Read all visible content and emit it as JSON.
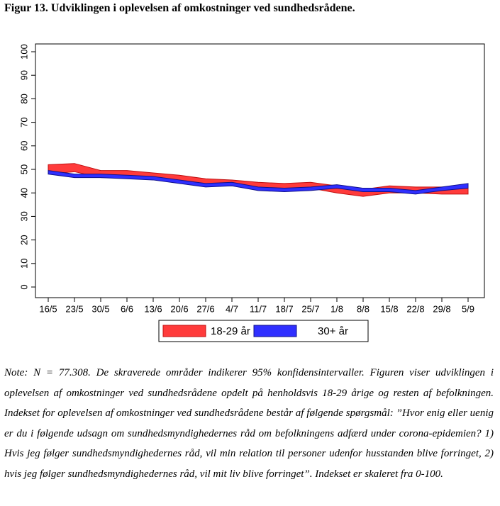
{
  "chart_data": {
    "type": "band",
    "title": "Figur 13. Udviklingen i oplevelsen af omkostninger ved sundhedsrådene.",
    "categories": [
      "16/5",
      "23/5",
      "30/5",
      "6/6",
      "13/6",
      "20/6",
      "27/6",
      "4/7",
      "11/7",
      "18/7",
      "25/7",
      "1/8",
      "8/8",
      "15/8",
      "22/8",
      "29/8",
      "5/9"
    ],
    "series": [
      {
        "name": "18-29 år",
        "color": "#ff3b3b",
        "lower": [
          48,
          49,
          46.5,
          46.5,
          46,
          45,
          43.5,
          43,
          42,
          41.5,
          42,
          40,
          38.5,
          40,
          40,
          39.5,
          39.5
        ],
        "upper": [
          52,
          52.5,
          49.5,
          49.5,
          48.5,
          47.5,
          46,
          45.5,
          44.5,
          44,
          44.5,
          43,
          41.5,
          43,
          42.5,
          42.5,
          42.5
        ]
      },
      {
        "name": "30+ år",
        "color": "#2f2fff",
        "lower": [
          48,
          46.5,
          46.5,
          46,
          45.5,
          44,
          42.5,
          43,
          41,
          40.5,
          41,
          42,
          40.5,
          40.5,
          39.5,
          41,
          42
        ],
        "upper": [
          49.5,
          48,
          48,
          47.5,
          47,
          45.5,
          44,
          44.5,
          42.5,
          42,
          42.5,
          43.5,
          42,
          42,
          41,
          42.5,
          44
        ]
      }
    ],
    "ylim": [
      0,
      100
    ],
    "yticks": [
      0,
      10,
      20,
      30,
      40,
      50,
      60,
      70,
      80,
      90,
      100
    ],
    "grid": false,
    "legend": "bottom",
    "note": "Note: N = 77.308. De skraverede områder indikerer 95% konfidensintervaller. Figuren viser udviklingen i oplevelsen af omkostninger ved sundhedsrådene opdelt på henholdsvis 18-29 årige og resten af befolkningen. Indekset for oplevelsen af omkostninger ved sundhedsrådene består af følgende spørgsmål: ”Hvor enig eller uenig er du i følgende udsagn om sundhedsmyndighedernes råd om befolkningens adfærd under corona-epidemien? 1) Hvis jeg følger sundhedsmyndighedernes råd, vil min relation til personer udenfor husstanden blive forringet, 2) hvis jeg følger sundhedsmyndighedernes råd, vil mit liv blive forringet”. Indekset er skaleret fra 0-100."
  }
}
